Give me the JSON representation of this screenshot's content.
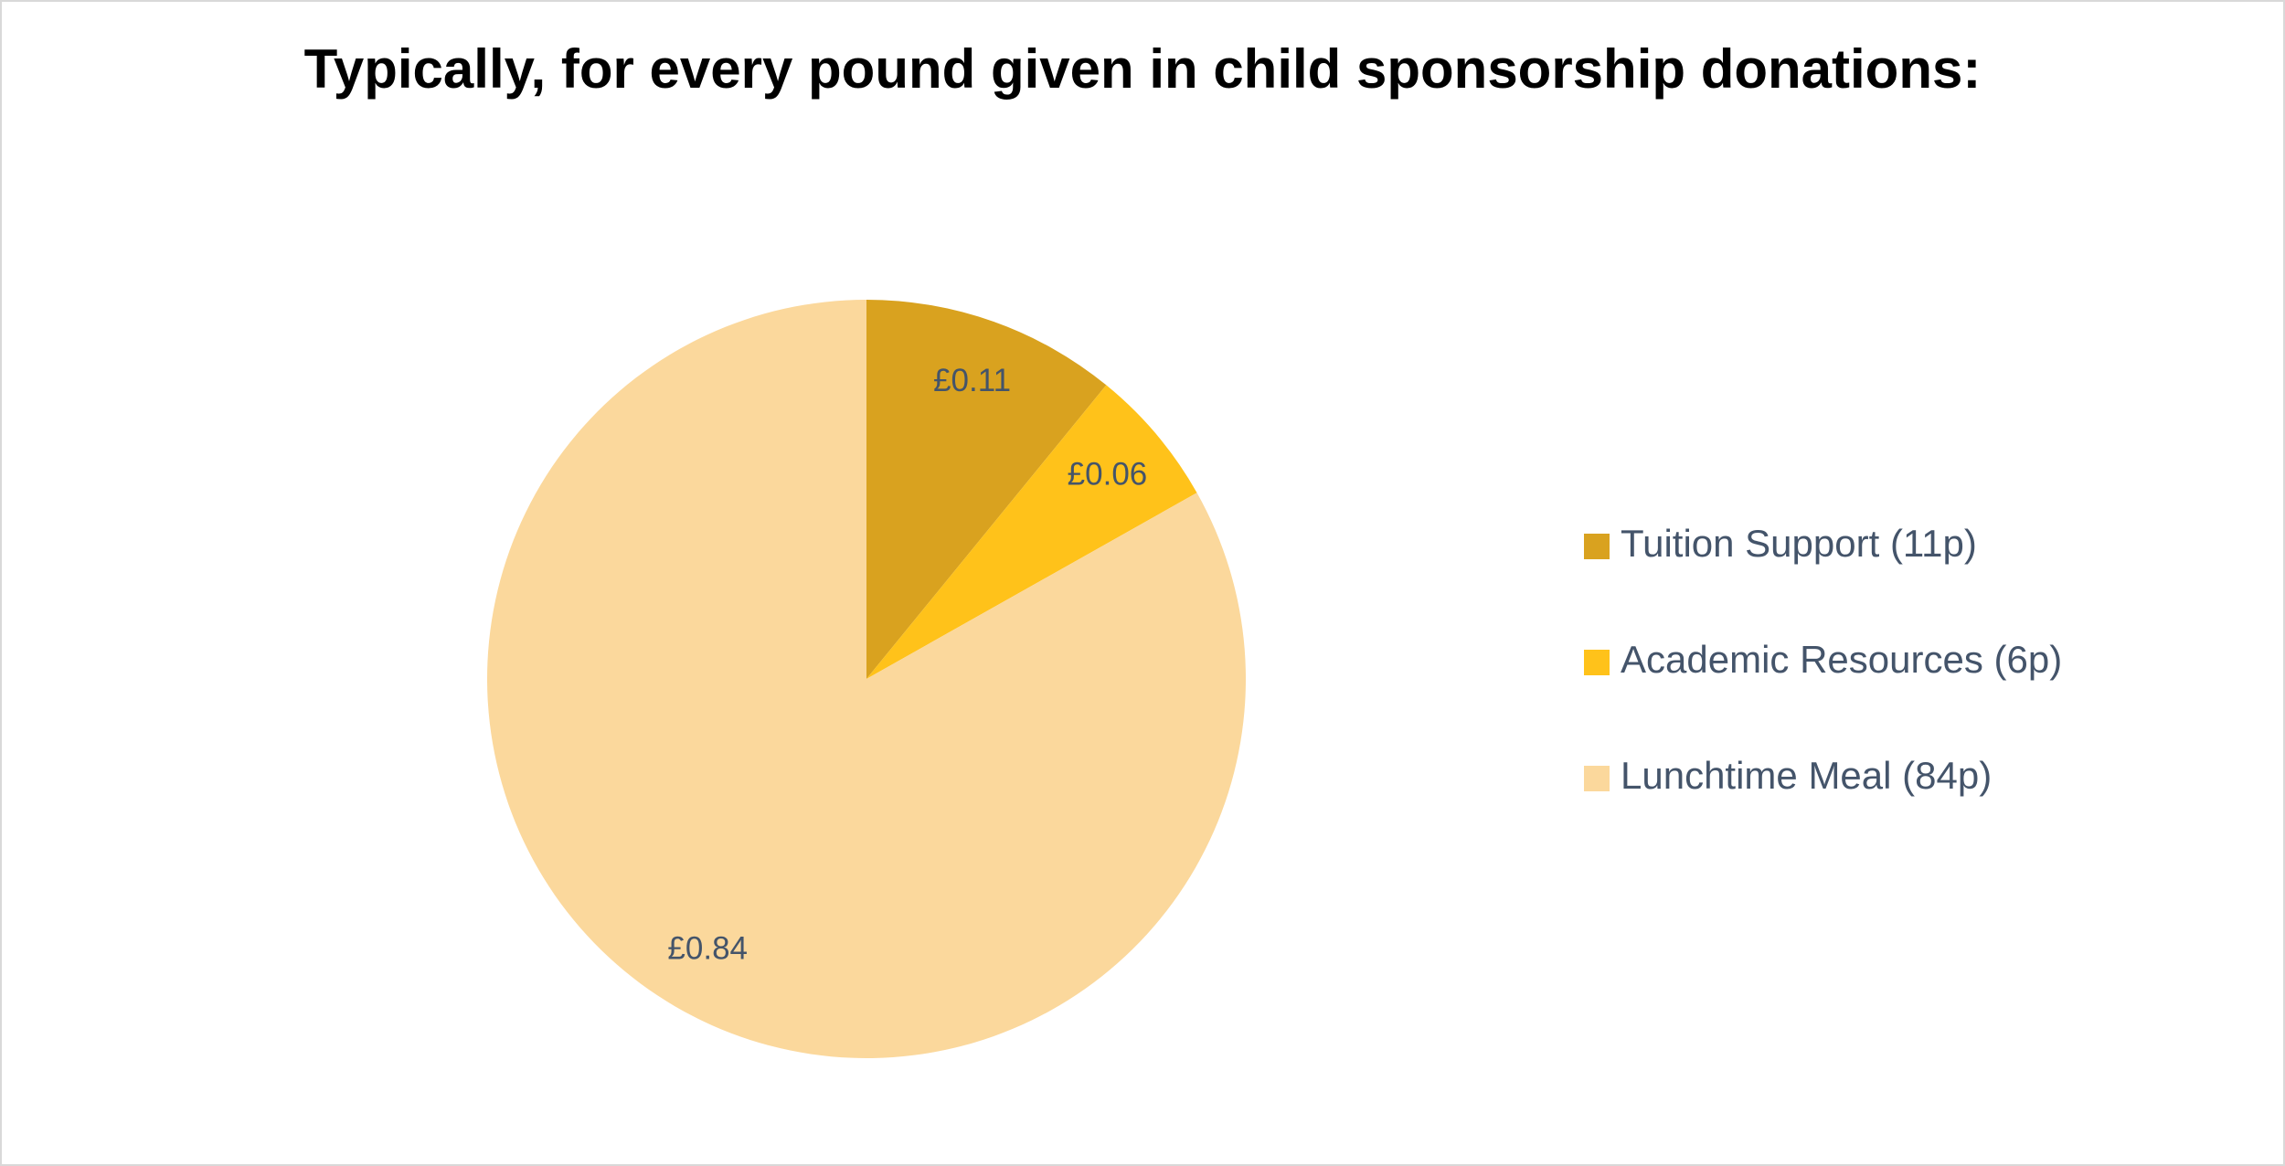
{
  "chart_data": {
    "type": "pie",
    "title": "Typically, for every pound given in child sponsorship donations:",
    "categories": [
      "Tuition Support (11p)",
      "Academic Resources (6p)",
      "Lunchtime Meal (84p)"
    ],
    "values": [
      0.11,
      0.06,
      0.84
    ],
    "value_labels": [
      "£0.11",
      "£0.06",
      "£0.84"
    ],
    "colors": [
      "#d9a21f",
      "#ffc21a",
      "#fbd89c"
    ],
    "legend": "right"
  }
}
